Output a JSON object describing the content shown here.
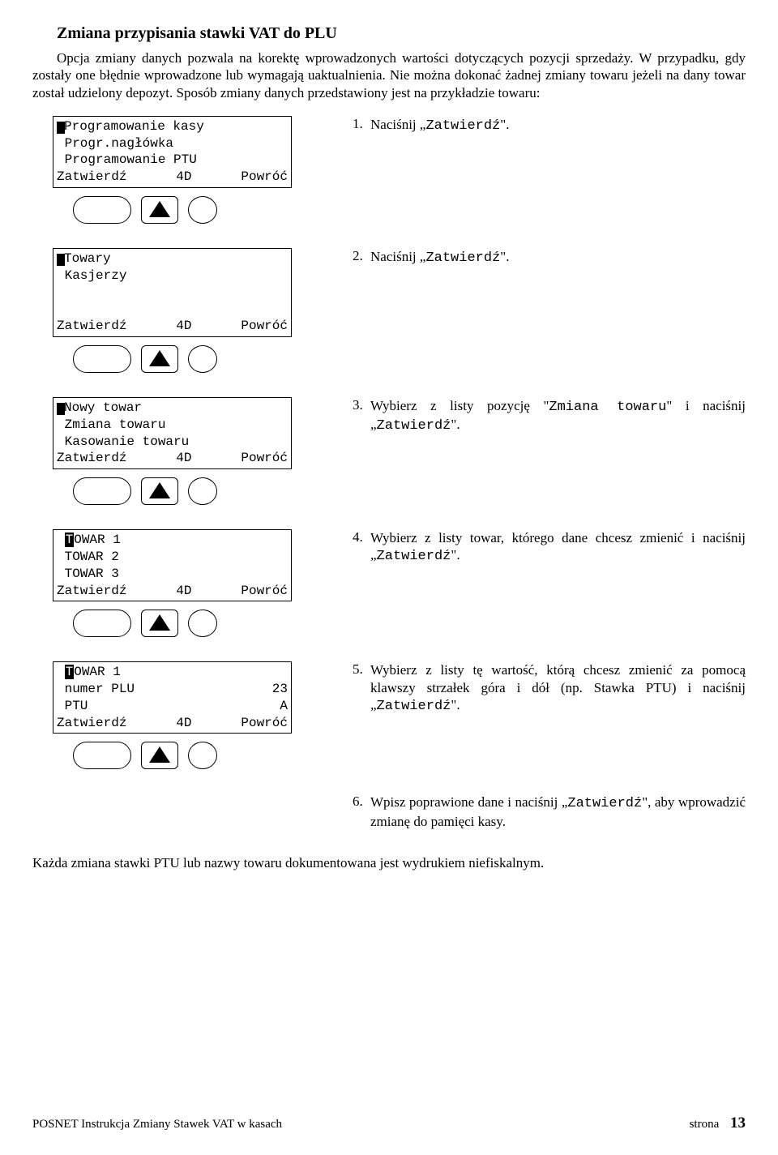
{
  "heading": "Zmiana przypisania stawki VAT do PLU",
  "intro": "Opcja zmiany danych pozwala na korektę wprowadzonych wartości dotyczących pozycji sprzedaży. W przypadku, gdy zostały one błędnie wprowadzone lub wymagają uaktualnienia. Nie można dokonać żadnej zmiany towaru jeżeli na dany towar został udzielony depozyt. Sposób zmiany danych przedstawiony jest na przykładzie towaru:",
  "lcdFooter": {
    "left": "Zatwierdź",
    "mid": "4D",
    "right": "Powróć"
  },
  "steps": [
    {
      "lcd": {
        "type": "lines-cursor",
        "lines": [
          "Programowanie kasy",
          " Progr.nagłówka",
          " Programowanie PTU"
        ]
      },
      "num": "1.",
      "text": "Naciśnij „",
      "mono": "Zatwierdź",
      "after": "\"."
    },
    {
      "lcd": {
        "type": "lines-cursor-blank",
        "lines": [
          "Towary",
          " Kasjerzy",
          ""
        ]
      },
      "num": "2.",
      "text": "Naciśnij „",
      "mono": "Zatwierdź",
      "after": "\"."
    },
    {
      "lcd": {
        "type": "lines-cursor",
        "lines": [
          "Nowy towar",
          " Zmiana towaru",
          " Kasowanie towaru"
        ]
      },
      "num": "3.",
      "text": "Wybierz z listy pozycję \"",
      "mono": "Zmiana towaru",
      "after": "\" i naciśnij „",
      "mono2": "Zatwierdź",
      "after2": "\"."
    },
    {
      "lcd": {
        "type": "lines-inv",
        "firstInv": "T",
        "firstRest": "OWAR 1",
        "lines": [
          " TOWAR 2",
          " TOWAR 3"
        ]
      },
      "num": "4.",
      "text": "Wybierz z listy towar, którego dane chcesz zmienić i naciśnij „",
      "mono": "Zatwierdź",
      "after": "\"."
    },
    {
      "lcd": {
        "type": "kv",
        "firstInv": "T",
        "firstRest": "OWAR 1",
        "rows": [
          {
            "l": " numer PLU",
            "r": "23"
          },
          {
            "l": " PTU",
            "r": "A"
          }
        ]
      },
      "num": "5.",
      "text": "Wybierz z listy tę wartość, którą chcesz zmienić za pomocą klawszy strzałek góra i dół (np. Stawka PTU) i naciśnij „",
      "mono": "Zatwierdź",
      "after": "\"."
    }
  ],
  "step6": {
    "num": "6.",
    "text": "Wpisz poprawione dane i naciśnij „",
    "mono": "Zatwierdź",
    "after": "\", aby wprowadzić zmianę do pamięci kasy."
  },
  "closing": "Każda zmiana stawki PTU lub nazwy towaru dokumentowana jest wydrukiem niefiskalnym.",
  "footer": {
    "left": "POSNET Instrukcja Zmiany Stawek VAT w kasach",
    "rightLabel": "strona",
    "page": "13"
  }
}
